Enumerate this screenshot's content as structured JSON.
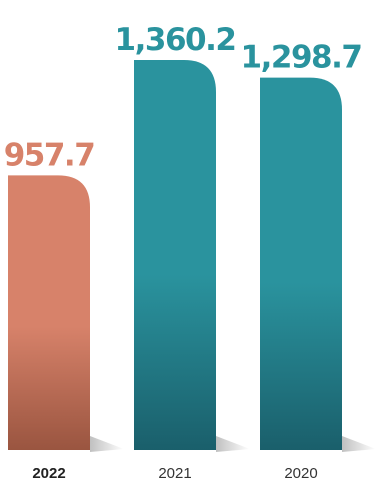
{
  "chart_data": {
    "type": "bar",
    "categories": [
      "2022",
      "2021",
      "2020"
    ],
    "values": [
      957.7,
      1360.2,
      1298.7
    ],
    "value_labels": [
      "957.7",
      "1,360.2",
      "1,298.7"
    ],
    "highlighted_category": "2022",
    "title": "",
    "xlabel": "",
    "ylabel": "",
    "grid": false,
    "legend": "none"
  },
  "colors": {
    "highlight": "#D7826A",
    "highlight_dark": "#9A5540",
    "series": "#2A939E",
    "series_dark": "#1A5F6B",
    "shadow": "#B5B5B5"
  }
}
